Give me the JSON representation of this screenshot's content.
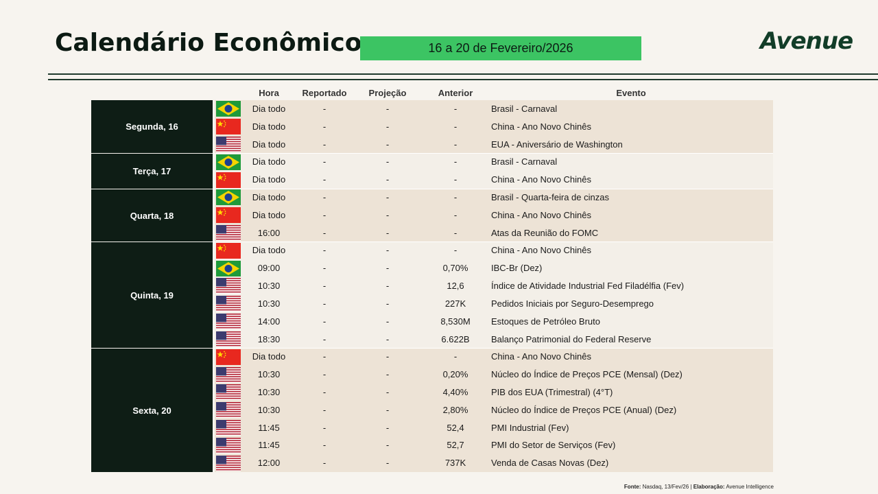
{
  "header": {
    "title": "Calendário Econômico",
    "period": "16 a 20 de Fevereiro/2026",
    "logo": "Avenue"
  },
  "table": {
    "columns": [
      "Hora",
      "Reportado",
      "Projeção",
      "Anterior",
      "Evento"
    ],
    "days": [
      {
        "label": "Segunda, 16",
        "rows": [
          {
            "flag": "br",
            "hora": "Dia todo",
            "reportado": "-",
            "projecao": "-",
            "anterior": "-",
            "evento": "Brasil - Carnaval"
          },
          {
            "flag": "cn",
            "hora": "Dia todo",
            "reportado": "-",
            "projecao": "-",
            "anterior": "-",
            "evento": "China - Ano Novo Chinês"
          },
          {
            "flag": "us",
            "hora": "Dia todo",
            "reportado": "-",
            "projecao": "-",
            "anterior": "-",
            "evento": "EUA - Aniversário de Washington"
          }
        ]
      },
      {
        "label": "Terça, 17",
        "rows": [
          {
            "flag": "br",
            "hora": "Dia todo",
            "reportado": "-",
            "projecao": "-",
            "anterior": "-",
            "evento": "Brasil - Carnaval"
          },
          {
            "flag": "cn",
            "hora": "Dia todo",
            "reportado": "-",
            "projecao": "-",
            "anterior": "-",
            "evento": "China - Ano Novo Chinês"
          }
        ]
      },
      {
        "label": "Quarta, 18",
        "rows": [
          {
            "flag": "br",
            "hora": "Dia todo",
            "reportado": "-",
            "projecao": "-",
            "anterior": "-",
            "evento": "Brasil - Quarta-feira de cinzas"
          },
          {
            "flag": "cn",
            "hora": "Dia todo",
            "reportado": "-",
            "projecao": "-",
            "anterior": "-",
            "evento": "China - Ano Novo Chinês"
          },
          {
            "flag": "us",
            "hora": "16:00",
            "reportado": "-",
            "projecao": "-",
            "anterior": "-",
            "evento": "Atas da Reunião do FOMC"
          }
        ]
      },
      {
        "label": "Quinta, 19",
        "rows": [
          {
            "flag": "cn",
            "hora": "Dia todo",
            "reportado": "-",
            "projecao": "-",
            "anterior": "-",
            "evento": "China - Ano Novo Chinês"
          },
          {
            "flag": "br",
            "hora": "09:00",
            "reportado": "-",
            "projecao": "-",
            "anterior": "0,70%",
            "evento": "IBC-Br (Dez)"
          },
          {
            "flag": "us",
            "hora": "10:30",
            "reportado": "-",
            "projecao": "-",
            "anterior": "12,6",
            "evento": "Índice de Atividade Industrial Fed Filadélfia (Fev)"
          },
          {
            "flag": "us",
            "hora": "10:30",
            "reportado": "-",
            "projecao": "-",
            "anterior": "227K",
            "evento": "Pedidos Iniciais por Seguro-Desemprego"
          },
          {
            "flag": "us",
            "hora": "14:00",
            "reportado": "-",
            "projecao": "-",
            "anterior": "8,530M",
            "evento": "Estoques de Petróleo Bruto"
          },
          {
            "flag": "us",
            "hora": "18:30",
            "reportado": "-",
            "projecao": "-",
            "anterior": "6.622B",
            "evento": "Balanço Patrimonial do Federal Reserve"
          }
        ]
      },
      {
        "label": "Sexta, 20",
        "rows": [
          {
            "flag": "cn",
            "hora": "Dia todo",
            "reportado": "-",
            "projecao": "-",
            "anterior": "-",
            "evento": "China - Ano Novo Chinês"
          },
          {
            "flag": "us",
            "hora": "10:30",
            "reportado": "-",
            "projecao": "-",
            "anterior": "0,20%",
            "evento": "Núcleo do Índice de Preços PCE (Mensal) (Dez)"
          },
          {
            "flag": "us",
            "hora": "10:30",
            "reportado": "-",
            "projecao": "-",
            "anterior": "4,40%",
            "evento": "PIB dos EUA (Trimestral) (4°T)"
          },
          {
            "flag": "us",
            "hora": "10:30",
            "reportado": "-",
            "projecao": "-",
            "anterior": "2,80%",
            "evento": "Núcleo do Índice de Preços PCE (Anual) (Dez)"
          },
          {
            "flag": "us",
            "hora": "11:45",
            "reportado": "-",
            "projecao": "-",
            "anterior": "52,4",
            "evento": "PMI Industrial (Fev)"
          },
          {
            "flag": "us",
            "hora": "11:45",
            "reportado": "-",
            "projecao": "-",
            "anterior": "52,7",
            "evento": "PMI do Setor de Serviços (Fev)"
          },
          {
            "flag": "us",
            "hora": "12:00",
            "reportado": "-",
            "projecao": "-",
            "anterior": "737K",
            "evento": "Venda de Casas Novas (Dez)"
          }
        ]
      }
    ]
  },
  "footer": {
    "source_label": "Fonte:",
    "source": "Nasdaq, 13/Fev/26 |",
    "by_label": "Elaboração:",
    "by": "Avenue Intelligence"
  }
}
